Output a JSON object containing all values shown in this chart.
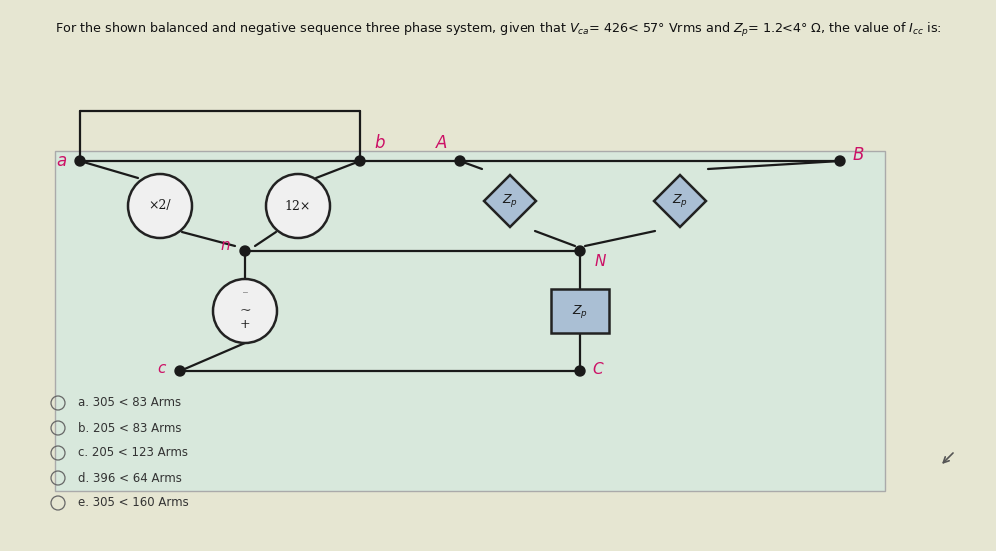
{
  "title": "For the shown balanced and negative sequence three phase system, given that $V_{ca}$= 426< 57° Vrms and $Z_p$= 1.2<4° Ω, the value of $I_{cc}$ is:",
  "bg_color": "#e6e6d2",
  "circuit_bg_color": "#d8e8dc",
  "options": [
    "a. 305 < 83 Arms",
    "b. 205 < 83 Arms",
    "c. 205 < 123 Arms",
    "d. 396 < 64 Arms",
    "e. 305 < 160 Arms"
  ],
  "node_color": "#1a1a1a",
  "wire_color": "#1a1a1a",
  "label_color": "#cc1166",
  "zp_fill": "#aabfd4",
  "zp_border": "#222222",
  "source_fill": "#f0f0f0",
  "source_border": "#222222",
  "wire_lw": 1.6
}
